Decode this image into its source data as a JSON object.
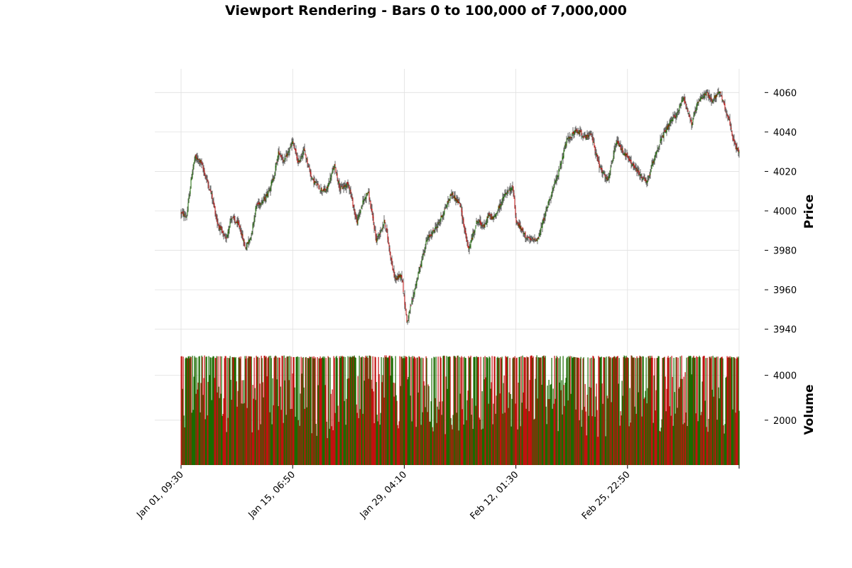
{
  "colors": {
    "up": "#1a6b00",
    "down": "#c2100f",
    "wick": "#2b2b2b",
    "grid": "#e0e0e0"
  },
  "chart_data": {
    "type": "candlestick",
    "title": "Viewport Rendering - Bars 0 to 100,000 of 7,000,000",
    "grid": true,
    "panels": [
      {
        "name": "price",
        "ylabel": "Price",
        "ylim": [
          3928,
          4072
        ],
        "yticks": [
          3940,
          3960,
          3980,
          4000,
          4020,
          4040,
          4060
        ],
        "ytick_labels": [
          "3940",
          "3960",
          "3980",
          "4000",
          "4020",
          "4040",
          "4060"
        ]
      },
      {
        "name": "volume",
        "ylabel": "Volume",
        "ylim": [
          0,
          5000
        ],
        "yticks": [
          2000,
          4000
        ],
        "ytick_labels": [
          "2000",
          "4000"
        ]
      }
    ],
    "xticks": [
      0,
      20000,
      40000,
      60000,
      80000
    ],
    "x_tick_labels": [
      "Jan 01, 09:30",
      "Jan 15, 06:50",
      "Jan 29, 04:10",
      "Feb 12, 01:30",
      "Feb 25, 22:50"
    ],
    "x_range": [
      0,
      100000
    ],
    "price_path": {
      "bar_index": [
        0,
        1000,
        2000,
        2500,
        3500,
        5500,
        6500,
        8000,
        9000,
        10500,
        11500,
        12500,
        13500,
        15000,
        16500,
        17500,
        18500,
        20000,
        21000,
        22000,
        23500,
        25000,
        26000,
        27500,
        28500,
        30000,
        31500,
        32500,
        33500,
        35000,
        36500,
        38000,
        38500,
        39500,
        40500,
        42000,
        44000,
        46000,
        47000,
        48500,
        50000,
        51500,
        53000,
        54500,
        55000,
        56000,
        58000,
        59500,
        60000,
        61500,
        62500,
        64000,
        66000,
        67500,
        69000,
        70500,
        71500,
        72500,
        73500,
        75000,
        76500,
        78000,
        80000,
        81500,
        83500,
        85000,
        86000,
        87500,
        89000,
        90000,
        91500,
        92500,
        94000,
        95000,
        96500,
        98000,
        99000,
        100000
      ],
      "close": [
        3999,
        3997,
        4020,
        4027,
        4025,
        4008,
        3994,
        3985,
        3997,
        3992,
        3981,
        3987,
        4003,
        4006,
        4016,
        4030,
        4025,
        4035,
        4024,
        4031,
        4016,
        4011,
        4010,
        4023,
        4011,
        4014,
        3994,
        4004,
        4010,
        3985,
        3995,
        3969,
        3965,
        3968,
        3943,
        3962,
        3985,
        3993,
        3999,
        4009,
        4003,
        3980,
        3995,
        3992,
        3998,
        3996,
        4008,
        4012,
        3995,
        3988,
        3985,
        3986,
        4006,
        4018,
        4035,
        4040,
        4040,
        4037,
        4039,
        4022,
        4015,
        4035,
        4027,
        4021,
        4014,
        4029,
        4036,
        4044,
        4050,
        4058,
        4044,
        4054,
        4060,
        4056,
        4060,
        4048,
        4035,
        4029
      ]
    },
    "volume_levels": {
      "bar_index": [
        0,
        5000,
        10000,
        15000,
        20000,
        25000,
        30000,
        35000,
        40000,
        45000,
        50000,
        55000,
        60000,
        65000,
        70000,
        75000,
        80000,
        85000,
        90000,
        95000,
        100000
      ],
      "max": [
        4860,
        4900,
        4860,
        4880,
        4900,
        4860,
        4880,
        4900,
        4870,
        4880,
        4890,
        4870,
        4880,
        4900,
        4860,
        4880,
        4890,
        4870,
        4900,
        4880,
        4860
      ],
      "typical": [
        2600,
        2900,
        2500,
        2700,
        3100,
        2400,
        2800,
        3000,
        2600,
        2800,
        2500,
        2900,
        2700,
        3000,
        2600,
        2400,
        2900,
        2700,
        3100,
        2600,
        2800
      ]
    }
  }
}
